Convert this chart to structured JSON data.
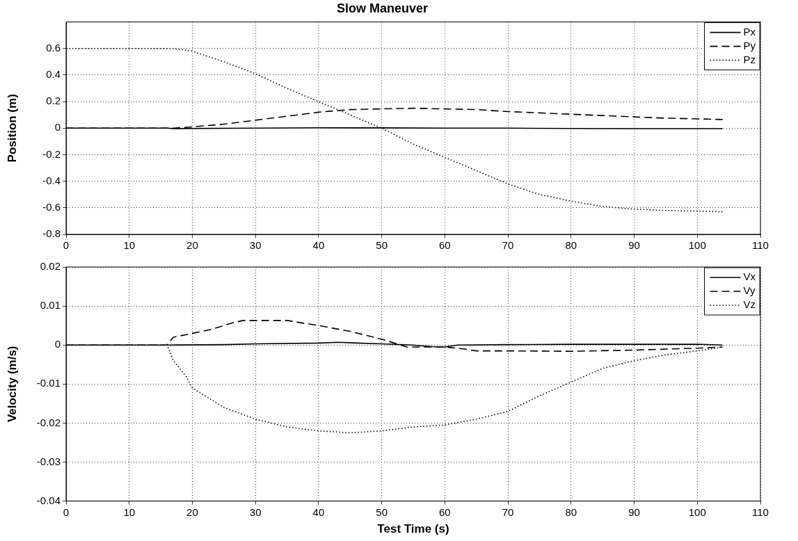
{
  "chart_data": [
    {
      "type": "line",
      "title": "Slow Maneuver",
      "ylabel": "Position (m)",
      "xlim": [
        0,
        110
      ],
      "xticks": [
        0,
        10,
        20,
        30,
        40,
        50,
        60,
        70,
        80,
        90,
        100,
        110
      ],
      "ylim": [
        -0.8,
        0.8
      ],
      "yticks": [
        -0.8,
        -0.6,
        -0.4,
        -0.2,
        0,
        0.2,
        0.4,
        0.6
      ],
      "grid": true,
      "legend": "top right",
      "marker": "none",
      "series": [
        {
          "name": "Px",
          "color": "#000000",
          "line_style": "solid",
          "x": [
            0,
            16,
            17,
            30,
            40,
            50,
            60,
            70,
            80,
            90,
            100,
            104
          ],
          "values": [
            0,
            0,
            -0.003,
            0,
            0.003,
            0.002,
            0,
            0,
            -0.002,
            -0.004,
            -0.004,
            -0.004
          ]
        },
        {
          "name": "Py",
          "color": "#000000",
          "line_style": "dashed",
          "x": [
            0,
            17,
            20,
            25,
            30,
            35,
            40,
            45,
            50,
            55,
            60,
            65,
            70,
            75,
            80,
            85,
            90,
            95,
            100,
            104
          ],
          "values": [
            0,
            0,
            0.01,
            0.03,
            0.06,
            0.09,
            0.12,
            0.14,
            0.145,
            0.15,
            0.145,
            0.14,
            0.125,
            0.115,
            0.105,
            0.095,
            0.085,
            0.075,
            0.07,
            0.065
          ]
        },
        {
          "name": "Pz",
          "color": "#000000",
          "line_style": "dotted",
          "x": [
            0,
            10,
            17,
            20,
            25,
            30,
            35,
            40,
            45,
            50,
            55,
            60,
            65,
            70,
            75,
            80,
            85,
            90,
            95,
            100,
            104
          ],
          "values": [
            0.6,
            0.6,
            0.6,
            0.58,
            0.5,
            0.41,
            0.3,
            0.2,
            0.1,
            0,
            -0.12,
            -0.22,
            -0.32,
            -0.42,
            -0.5,
            -0.55,
            -0.59,
            -0.61,
            -0.62,
            -0.625,
            -0.63
          ]
        }
      ]
    },
    {
      "type": "line",
      "xlabel": "Test Time (s)",
      "ylabel": "Velocity (m/s)",
      "xlim": [
        0,
        110
      ],
      "xticks": [
        0,
        10,
        20,
        30,
        40,
        50,
        60,
        70,
        80,
        90,
        100,
        110
      ],
      "ylim": [
        -0.04,
        0.02
      ],
      "yticks": [
        -0.04,
        -0.03,
        -0.02,
        -0.01,
        0,
        0.01,
        0.02
      ],
      "grid": true,
      "legend": "top right",
      "marker": "none",
      "series": [
        {
          "name": "Vx",
          "color": "#000000",
          "line_style": "solid",
          "x": [
            0,
            16,
            25,
            30,
            40,
            43,
            50,
            55,
            58,
            60,
            62,
            70,
            80,
            90,
            100,
            104
          ],
          "values": [
            0,
            0,
            0.0001,
            0.0003,
            0.0005,
            0.0007,
            0.0003,
            0,
            -0.0004,
            -0.0005,
            0,
            0.0001,
            0.0002,
            0.0002,
            0.0002,
            0
          ]
        },
        {
          "name": "Vy",
          "color": "#000000",
          "line_style": "dashed",
          "x": [
            0,
            16,
            17,
            20,
            23,
            26,
            28,
            35,
            40,
            45,
            50,
            54,
            60,
            63,
            65,
            70,
            80,
            90,
            100,
            104
          ],
          "values": [
            0,
            0,
            0.002,
            0.003,
            0.004,
            0.0055,
            0.0063,
            0.0063,
            0.005,
            0.0035,
            0.0015,
            -0.0005,
            -0.0005,
            -0.001,
            -0.0015,
            -0.0015,
            -0.0016,
            -0.0013,
            -0.0008,
            -0.0005
          ]
        },
        {
          "name": "Vz",
          "color": "#000000",
          "line_style": "dotted",
          "x": [
            0,
            16,
            17,
            19,
            20,
            22,
            25,
            30,
            35,
            40,
            45,
            50,
            55,
            60,
            65,
            70,
            75,
            80,
            85,
            90,
            95,
            100,
            104
          ],
          "values": [
            0,
            0,
            -0.004,
            -0.008,
            -0.011,
            -0.013,
            -0.016,
            -0.019,
            -0.021,
            -0.022,
            -0.0225,
            -0.022,
            -0.021,
            -0.0205,
            -0.019,
            -0.017,
            -0.013,
            -0.0095,
            -0.006,
            -0.004,
            -0.0025,
            -0.0015,
            -0.0005
          ]
        }
      ]
    }
  ]
}
